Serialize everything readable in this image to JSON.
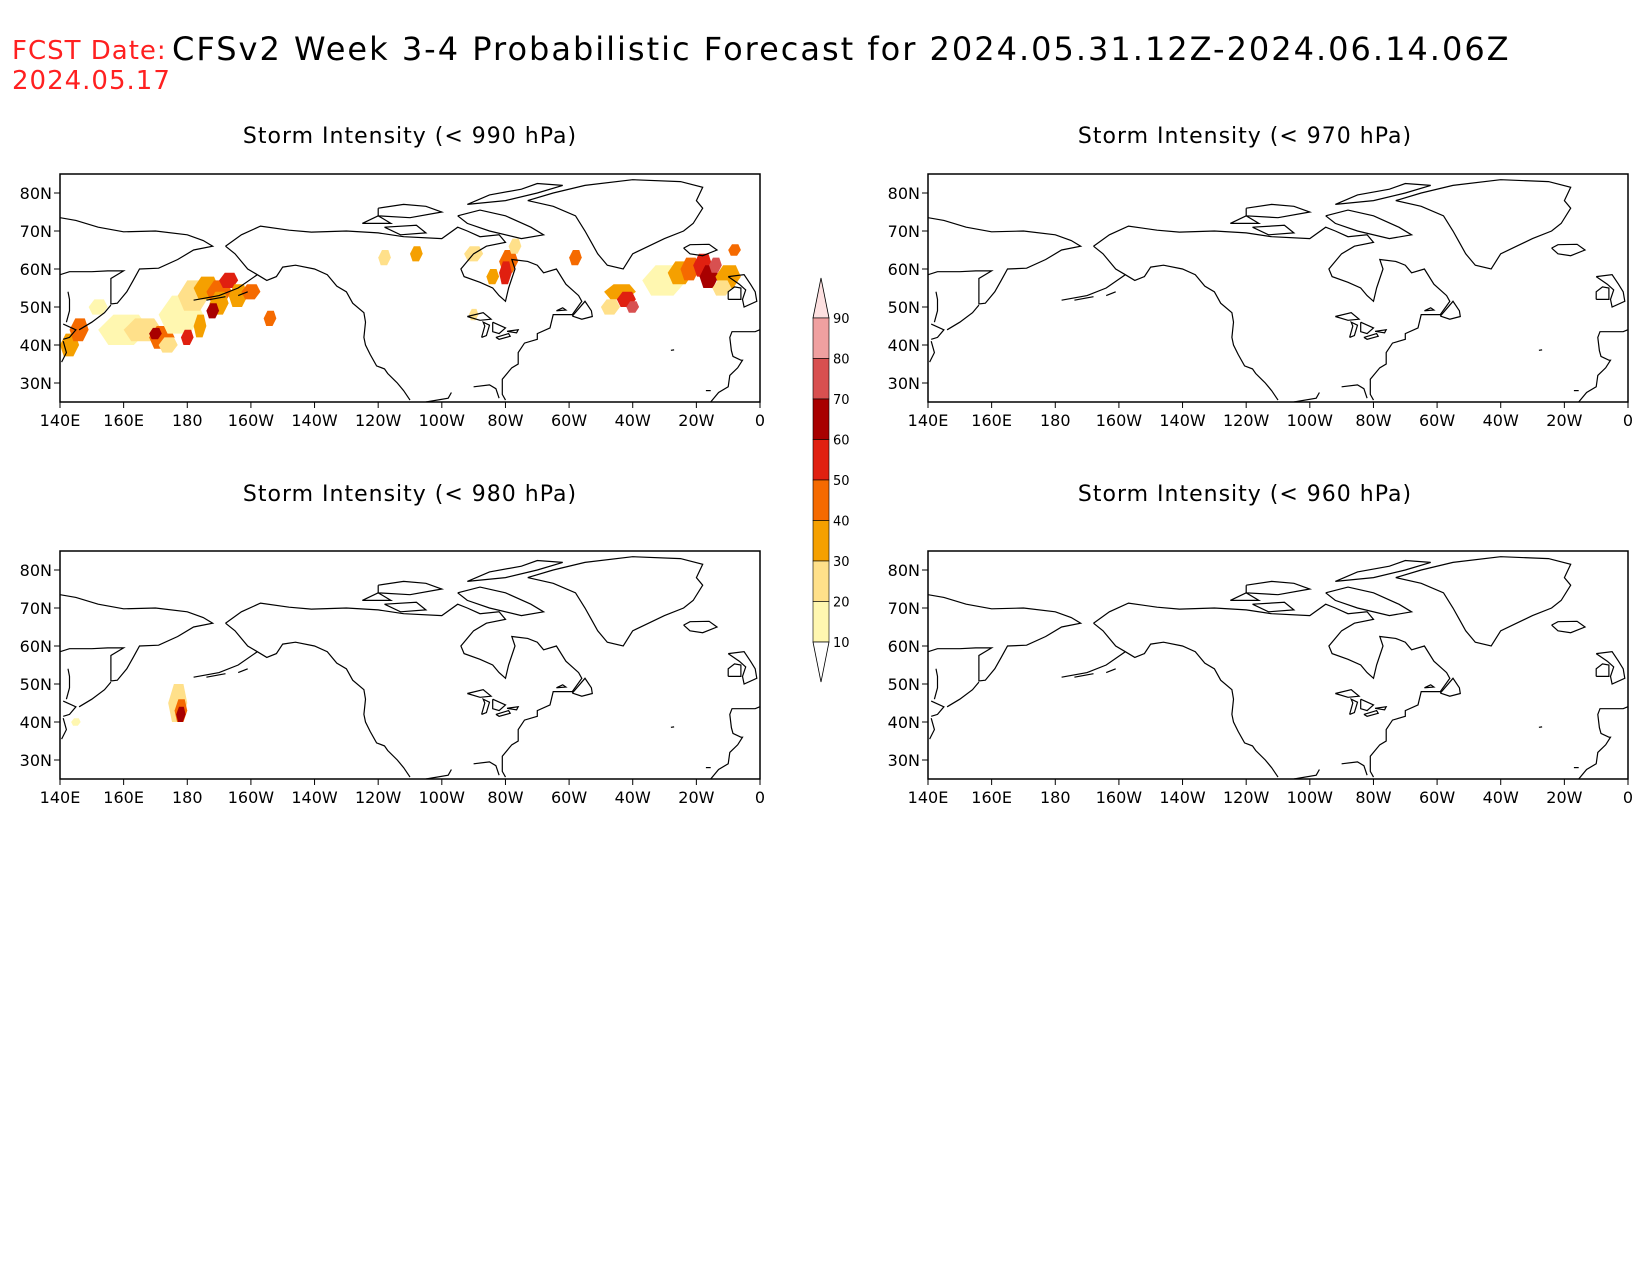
{
  "header": {
    "fcst_label": "FCST Date:",
    "fcst_date": "2024.05.17",
    "title": "CFSv2 Week 3-4 Probabilistic Forecast for 2024.05.31.12Z-2024.06.14.06Z"
  },
  "panels": [
    {
      "title": "Storm Intensity (< 990 hPa)",
      "has_data": true
    },
    {
      "title": "Storm Intensity (< 970 hPa)",
      "has_data": false
    },
    {
      "title": "Storm Intensity (< 980 hPa)",
      "has_data": true
    },
    {
      "title": "Storm Intensity (< 960 hPa)",
      "has_data": false
    }
  ],
  "axes": {
    "lon_labels": [
      "140E",
      "160E",
      "180",
      "160W",
      "140W",
      "120W",
      "100W",
      "80W",
      "60W",
      "40W",
      "20W",
      "0"
    ],
    "lat_labels": [
      "80N",
      "70N",
      "60N",
      "50N",
      "40N",
      "30N"
    ]
  },
  "colorbar": {
    "levels": [
      "10",
      "20",
      "30",
      "40",
      "50",
      "60",
      "70",
      "80",
      "90"
    ],
    "colors": [
      "#fff7b0",
      "#ffe08a",
      "#f5a000",
      "#f56a00",
      "#e02010",
      "#a80000",
      "#d85050",
      "#f0a0a0",
      "#fde0e0"
    ]
  }
}
